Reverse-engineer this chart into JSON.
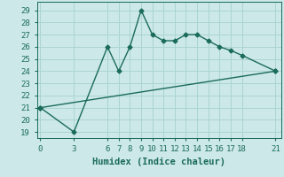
{
  "xlabel": "Humidex (Indice chaleur)",
  "background_color": "#cce8e8",
  "line_color": "#1a6b5a",
  "grid_color": "#aad4d4",
  "x_ticks": [
    0,
    3,
    6,
    7,
    8,
    9,
    10,
    11,
    12,
    13,
    14,
    15,
    16,
    17,
    18,
    21
  ],
  "y_ticks": [
    19,
    20,
    21,
    22,
    23,
    24,
    25,
    26,
    27,
    28,
    29
  ],
  "xlim": [
    -0.3,
    21.5
  ],
  "ylim": [
    18.5,
    29.7
  ],
  "line1_x": [
    0,
    3,
    6,
    7,
    8,
    9,
    10,
    11,
    12,
    13,
    14,
    15,
    16,
    17,
    18,
    21
  ],
  "line1_y": [
    21,
    19,
    26,
    24,
    26,
    29,
    27,
    26.5,
    26.5,
    27,
    27,
    26.5,
    26,
    25.7,
    25.3,
    24
  ],
  "line2_x": [
    0,
    21
  ],
  "line2_y": [
    21,
    24
  ],
  "marker": "D",
  "marker_size": 2.5,
  "line_width": 1.0,
  "tick_fontsize": 6.5,
  "xlabel_fontsize": 7.5
}
